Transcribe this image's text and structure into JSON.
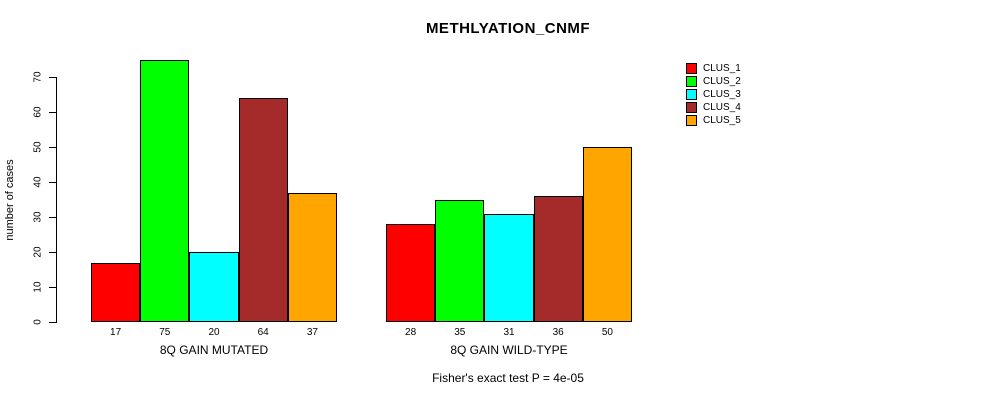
{
  "figure": {
    "background": "#ffffff",
    "axis_color": "#000000"
  },
  "chart_data": {
    "type": "bar",
    "title": "METHLYATION_CNMF",
    "ylabel": "number of cases",
    "xlabel": "",
    "ylim": [
      0,
      70
    ],
    "yticks": [
      0,
      10,
      20,
      30,
      40,
      50,
      60,
      70
    ],
    "grid": false,
    "legend_position": "right",
    "bar_borders": "#000000",
    "categories": [
      "8Q GAIN MUTATED",
      "8Q GAIN WILD-TYPE"
    ],
    "series": [
      {
        "name": "CLUS_1",
        "color": "#ff0000",
        "values": [
          17,
          28
        ]
      },
      {
        "name": "CLUS_2",
        "color": "#00ff00",
        "values": [
          75,
          35
        ]
      },
      {
        "name": "CLUS_3",
        "color": "#00ffff",
        "values": [
          20,
          31
        ]
      },
      {
        "name": "CLUS_4",
        "color": "#a52a2a",
        "values": [
          64,
          36
        ]
      },
      {
        "name": "CLUS_5",
        "color": "#ffa500",
        "values": [
          37,
          50
        ]
      }
    ],
    "footer": "Fisher's exact test P = 4e-05"
  }
}
